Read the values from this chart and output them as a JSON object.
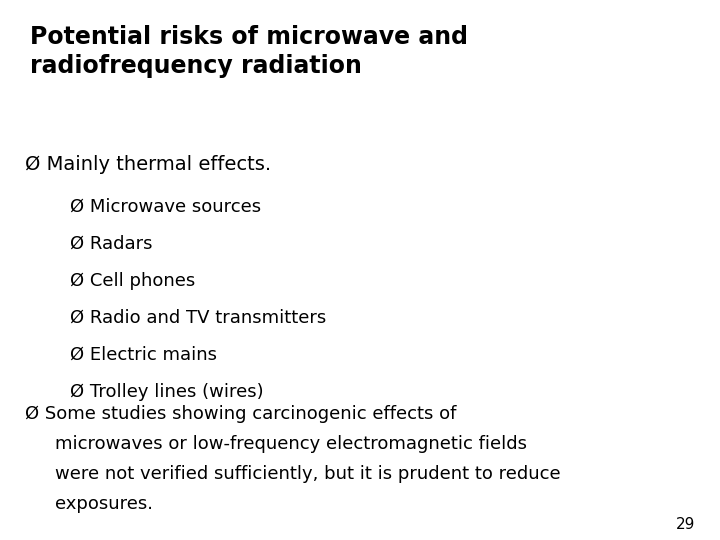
{
  "title_line1": "Potential risks of microwave and",
  "title_line2": "radiofrequency radiation",
  "bullet1_symbol": "Ø",
  "bullet1_text": " Mainly thermal effects.",
  "sub_bullet_symbol": "Ø",
  "sub_bullets": [
    " Microwave sources",
    " Radars",
    " Cell phones",
    " Radio and TV transmitters",
    " Electric mains",
    " Trolley lines (wires)"
  ],
  "bullet2_symbol": "Ø",
  "bullet2_lines": [
    " Some studies showing carcinogenic effects of",
    "microwaves or low-frequency electromagnetic fields",
    "were not verified sufficiently, but it is prudent to reduce",
    "exposures."
  ],
  "page_number": "29",
  "background_color": "#ffffff",
  "text_color": "#000000",
  "title_fontsize": 17,
  "bullet1_fontsize": 14,
  "sub_bullet_fontsize": 13,
  "bullet2_fontsize": 13,
  "page_num_fontsize": 11,
  "fig_width": 7.2,
  "fig_height": 5.4,
  "dpi": 100
}
